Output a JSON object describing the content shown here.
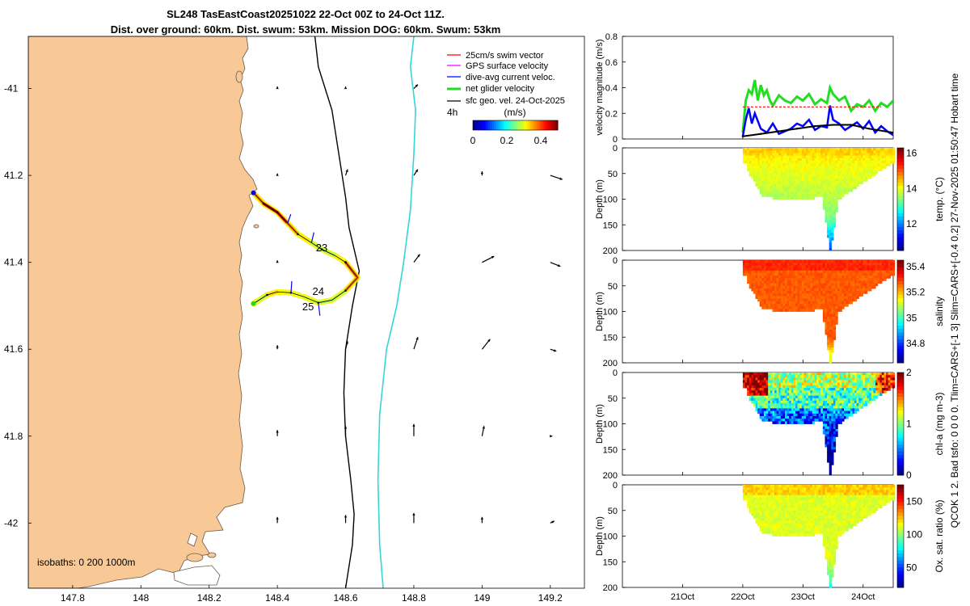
{
  "title": {
    "line1": "SL248 TasEastCoast20251022 22-Oct 00Z to 24-Oct 11Z.",
    "line2": "Dist. over ground: 60km. Dist. swum: 53km. Mission DOG: 60km. Swum: 53km"
  },
  "side_text": "QCOK 1 2. Bad tsfo: 0 0 0 0. Tlim=CARS+[-1 3] Slim=CARS+[-0.4 0.2] 27-Nov-2025 01:50:47 Hobart time",
  "colors": {
    "land": "#f9c897",
    "coast": "#6b5a4a",
    "isobath_200": "#000000",
    "isobath_1000": "#33d6d6",
    "red": "#ff0000",
    "magenta": "#ff00ff",
    "blue": "#0000ff",
    "green": "#22dd22",
    "black": "#000000"
  },
  "chart_data": [
    {
      "type": "map",
      "name": "glider track map",
      "xlim": [
        147.67,
        149.3
      ],
      "ylim": [
        -42.15,
        -40.88
      ],
      "x_ticks": [
        147.8,
        148,
        148.2,
        148.4,
        148.6,
        148.8,
        149,
        149.2
      ],
      "x_tick_labels": [
        "147.8",
        "148",
        "148.2",
        "148.4",
        "148.6",
        "148.8",
        "149",
        "149.2"
      ],
      "y_ticks": [
        -41,
        -41.2,
        -41.4,
        -41.6,
        -41.8,
        -42
      ],
      "y_tick_labels": [
        "-41",
        "41.2",
        "41.4",
        "41.6",
        "41.8",
        "-42"
      ],
      "isobath_label": "isobaths: 0   200  1000m",
      "legend": [
        {
          "label": "25cm/s swim vector",
          "color": "red"
        },
        {
          "label": "GPS surface velocity",
          "color": "magenta"
        },
        {
          "label": "dive-avg current veloc.",
          "color": "blue"
        },
        {
          "label": "net glider velocity",
          "color": "green"
        },
        {
          "label": "sfc geo. vel. 24-Oct-2025",
          "color": "black"
        }
      ],
      "colorbar": {
        "label": "(m/s)",
        "corner_label": "4h",
        "range": [
          0,
          0.5
        ],
        "ticks": [
          0,
          0.2,
          0.4
        ],
        "tick_labels": [
          "0",
          "0.2",
          "0.4"
        ]
      },
      "track": {
        "lon": [
          148.33,
          148.36,
          148.4,
          148.43,
          148.46,
          148.5,
          148.53,
          148.57,
          148.6,
          148.635,
          148.6,
          148.56,
          148.52,
          148.48,
          148.44,
          148.4,
          148.37,
          148.33
        ],
        "lat": [
          -41.24,
          -41.265,
          -41.285,
          -41.31,
          -41.335,
          -41.355,
          -41.37,
          -41.385,
          -41.4,
          -41.435,
          -41.465,
          -41.487,
          -41.493,
          -41.48,
          -41.47,
          -41.468,
          -41.475,
          -41.495
        ],
        "speed": [
          0.3,
          0.45,
          0.5,
          0.4,
          0.35,
          0.3,
          0.25,
          0.28,
          0.35,
          0.45,
          0.3,
          0.25,
          0.28,
          0.3,
          0.3,
          0.32,
          0.35,
          0.2
        ]
      },
      "day_labels": [
        {
          "text": "23",
          "lon": 148.53,
          "lat": -41.375
        },
        {
          "text": "24",
          "lon": 148.52,
          "lat": -41.475
        },
        {
          "text": "25",
          "lon": 148.49,
          "lat": -41.51
        }
      ],
      "isobath_200": {
        "lon": [
          148.51,
          148.52,
          148.56,
          148.58,
          148.6,
          148.61,
          148.64,
          148.62,
          148.6,
          148.595,
          148.6,
          148.615,
          148.625,
          148.62,
          148.6
        ],
        "lat": [
          -40.88,
          -40.95,
          -41.05,
          -41.15,
          -41.25,
          -41.32,
          -41.42,
          -41.5,
          -41.6,
          -41.7,
          -41.8,
          -41.9,
          -41.98,
          -42.05,
          -42.15
        ]
      },
      "isobath_1000": {
        "lon": [
          148.8,
          148.79,
          148.805,
          148.8,
          148.79,
          148.77,
          148.75,
          148.72,
          148.7,
          148.695,
          148.7,
          148.71
        ],
        "lat": [
          -40.88,
          -40.95,
          -41.05,
          -41.15,
          -41.28,
          -41.4,
          -41.5,
          -41.6,
          -41.75,
          -41.9,
          -42.05,
          -42.15
        ]
      },
      "geo_vectors": [
        {
          "lon": 148.4,
          "lat": -41.0,
          "u": 0.0,
          "v": 0.01
        },
        {
          "lon": 148.6,
          "lat": -41.0,
          "u": 0.0,
          "v": 0.01
        },
        {
          "lon": 148.8,
          "lat": -41.0,
          "u": 0.02,
          "v": 0.02
        },
        {
          "lon": 148.4,
          "lat": -41.2,
          "u": 0.0,
          "v": 0.01
        },
        {
          "lon": 148.8,
          "lat": -41.2,
          "u": 0.02,
          "v": 0.03
        },
        {
          "lon": 148.6,
          "lat": -41.2,
          "u": 0.01,
          "v": 0.03
        },
        {
          "lon": 149.0,
          "lat": -41.2,
          "u": 0.0,
          "v": 0.02
        },
        {
          "lon": 149.2,
          "lat": -41.2,
          "u": 0.06,
          "v": -0.02
        },
        {
          "lon": 148.4,
          "lat": -41.4,
          "u": 0.0,
          "v": 0.01
        },
        {
          "lon": 148.8,
          "lat": -41.4,
          "u": 0.03,
          "v": 0.04
        },
        {
          "lon": 149.0,
          "lat": -41.4,
          "u": 0.06,
          "v": 0.03
        },
        {
          "lon": 149.2,
          "lat": -41.4,
          "u": 0.05,
          "v": -0.02
        },
        {
          "lon": 148.4,
          "lat": -41.6,
          "u": 0.0,
          "v": 0.02
        },
        {
          "lon": 148.6,
          "lat": -41.6,
          "u": 0.01,
          "v": 0.04
        },
        {
          "lon": 148.8,
          "lat": -41.6,
          "u": 0.02,
          "v": 0.06
        },
        {
          "lon": 149.0,
          "lat": -41.6,
          "u": 0.04,
          "v": 0.05
        },
        {
          "lon": 149.2,
          "lat": -41.6,
          "u": 0.03,
          "v": -0.01
        },
        {
          "lon": 148.4,
          "lat": -41.8,
          "u": 0.0,
          "v": 0.03
        },
        {
          "lon": 148.6,
          "lat": -41.8,
          "u": 0.0,
          "v": 0.05
        },
        {
          "lon": 148.8,
          "lat": -41.8,
          "u": 0.0,
          "v": 0.06
        },
        {
          "lon": 149.0,
          "lat": -41.8,
          "u": 0.01,
          "v": 0.05
        },
        {
          "lon": 149.2,
          "lat": -41.8,
          "u": 0.01,
          "v": 0.0
        },
        {
          "lon": 148.4,
          "lat": -42.0,
          "u": 0.0,
          "v": 0.03
        },
        {
          "lon": 148.6,
          "lat": -42.0,
          "u": 0.0,
          "v": 0.04
        },
        {
          "lon": 148.8,
          "lat": -42.0,
          "u": 0.0,
          "v": 0.05
        },
        {
          "lon": 149.0,
          "lat": -42.0,
          "u": 0.0,
          "v": 0.03
        },
        {
          "lon": 149.2,
          "lat": -42.0,
          "u": 0.02,
          "v": 0.01
        }
      ]
    },
    {
      "type": "line",
      "name": "velocity magnitude",
      "ylabel": "velocity magnitude (m/s)",
      "xlim": [
        20.0,
        24.5
      ],
      "ylim": [
        0,
        0.8
      ],
      "y_ticks": [
        0,
        0.2,
        0.4,
        0.6,
        0.8
      ],
      "y_tick_labels": [
        "0",
        "0.2",
        "0.4",
        "0.6",
        "0.8"
      ],
      "series": [
        {
          "name": "net glider velocity",
          "color": "green",
          "x": [
            22.0,
            22.05,
            22.1,
            22.15,
            22.2,
            22.25,
            22.3,
            22.35,
            22.4,
            22.45,
            22.5,
            22.6,
            22.7,
            22.8,
            22.9,
            23.0,
            23.1,
            23.2,
            23.3,
            23.4,
            23.45,
            23.5,
            23.6,
            23.7,
            23.8,
            23.9,
            24.0,
            24.1,
            24.2,
            24.3,
            24.4,
            24.5
          ],
          "values": [
            0.05,
            0.3,
            0.38,
            0.35,
            0.46,
            0.3,
            0.42,
            0.34,
            0.38,
            0.3,
            0.26,
            0.34,
            0.3,
            0.28,
            0.33,
            0.3,
            0.35,
            0.27,
            0.31,
            0.28,
            0.4,
            0.35,
            0.3,
            0.33,
            0.22,
            0.27,
            0.25,
            0.3,
            0.22,
            0.28,
            0.25,
            0.3
          ]
        },
        {
          "name": "dive-avg current veloc.",
          "color": "blue",
          "x": [
            22.0,
            22.05,
            22.1,
            22.15,
            22.2,
            22.3,
            22.4,
            22.5,
            22.6,
            22.7,
            22.8,
            22.9,
            23.0,
            23.1,
            23.2,
            23.3,
            23.4,
            23.45,
            23.5,
            23.6,
            23.7,
            23.8,
            23.9,
            24.0,
            24.1,
            24.2,
            24.3,
            24.4,
            24.5
          ],
          "values": [
            0.02,
            0.15,
            0.24,
            0.12,
            0.2,
            0.08,
            0.05,
            0.12,
            0.04,
            0.06,
            0.08,
            0.12,
            0.1,
            0.15,
            0.07,
            0.1,
            0.09,
            0.26,
            0.15,
            0.12,
            0.07,
            0.1,
            0.13,
            0.08,
            0.14,
            0.05,
            0.1,
            0.06,
            0.03
          ]
        },
        {
          "name": "swim speed",
          "color": "red",
          "x": [
            22.0,
            22.1,
            22.2,
            23.0,
            24.0,
            24.3
          ],
          "values": [
            0.25,
            0.25,
            0.25,
            0.25,
            0.25,
            0.25
          ]
        },
        {
          "name": "sfc geo. vel.",
          "color": "black",
          "x": [
            22.0,
            22.3,
            22.6,
            22.9,
            23.2,
            23.5,
            23.8,
            24.1,
            24.5
          ],
          "values": [
            0.02,
            0.04,
            0.06,
            0.08,
            0.1,
            0.11,
            0.11,
            0.08,
            0.05
          ]
        }
      ]
    },
    {
      "type": "heatmap",
      "name": "temperature section",
      "ylabel": "Depth (m)",
      "colorbar_label": "temp. (°C)",
      "ylim": [
        0,
        200
      ],
      "y_ticks": [
        0,
        50,
        100,
        150,
        200
      ],
      "y_tick_labels": [
        "0",
        "50",
        "100",
        "150",
        "200"
      ],
      "clim": [
        10.5,
        16.3
      ],
      "cbar_ticks": [
        12,
        14,
        16
      ],
      "cbar_tick_labels": [
        "12",
        "14",
        "16"
      ],
      "typical_value": 14.3
    },
    {
      "type": "heatmap",
      "name": "salinity section",
      "ylabel": "Depth (m)",
      "colorbar_label": "salinity",
      "ylim": [
        0,
        200
      ],
      "y_ticks": [
        0,
        50,
        100,
        150,
        200
      ],
      "y_tick_labels": [
        "0",
        "50",
        "100",
        "150",
        "200"
      ],
      "clim": [
        34.65,
        35.45
      ],
      "cbar_ticks": [
        34.8,
        35,
        35.2,
        35.4
      ],
      "cbar_tick_labels": [
        "34.8",
        "35",
        "35.2",
        "35.4"
      ],
      "typical_value": 35.28
    },
    {
      "type": "heatmap",
      "name": "chlorophyll section",
      "ylabel": "Depth (m)",
      "colorbar_label": "chl-a (mg m-3)",
      "ylim": [
        0,
        200
      ],
      "y_ticks": [
        0,
        50,
        100,
        150,
        200
      ],
      "y_tick_labels": [
        "0",
        "50",
        "100",
        "150",
        "200"
      ],
      "clim": [
        0,
        2
      ],
      "cbar_ticks": [
        0,
        1,
        2
      ],
      "cbar_tick_labels": [
        "0",
        "1",
        "2"
      ],
      "typical_value": 0.9
    },
    {
      "type": "heatmap",
      "name": "oxygen saturation section",
      "ylabel": "Depth (m)",
      "colorbar_label": "Ox. sat. ratio (%)",
      "ylim": [
        0,
        200
      ],
      "y_ticks": [
        0,
        50,
        100,
        150,
        200
      ],
      "y_tick_labels": [
        "0",
        "50",
        "100",
        "150",
        "200"
      ],
      "clim": [
        20,
        175
      ],
      "cbar_ticks": [
        50,
        100,
        150
      ],
      "cbar_tick_labels": [
        "50",
        "100",
        "150"
      ],
      "typical_value": 112
    },
    {
      "type": "time_axis",
      "name": "shared time axis",
      "xlim": [
        20.0,
        24.5
      ],
      "x_ticks": [
        21,
        22,
        23,
        24
      ],
      "x_tick_labels": [
        "21Oct",
        "22Oct",
        "23Oct",
        "24Oct"
      ]
    }
  ]
}
